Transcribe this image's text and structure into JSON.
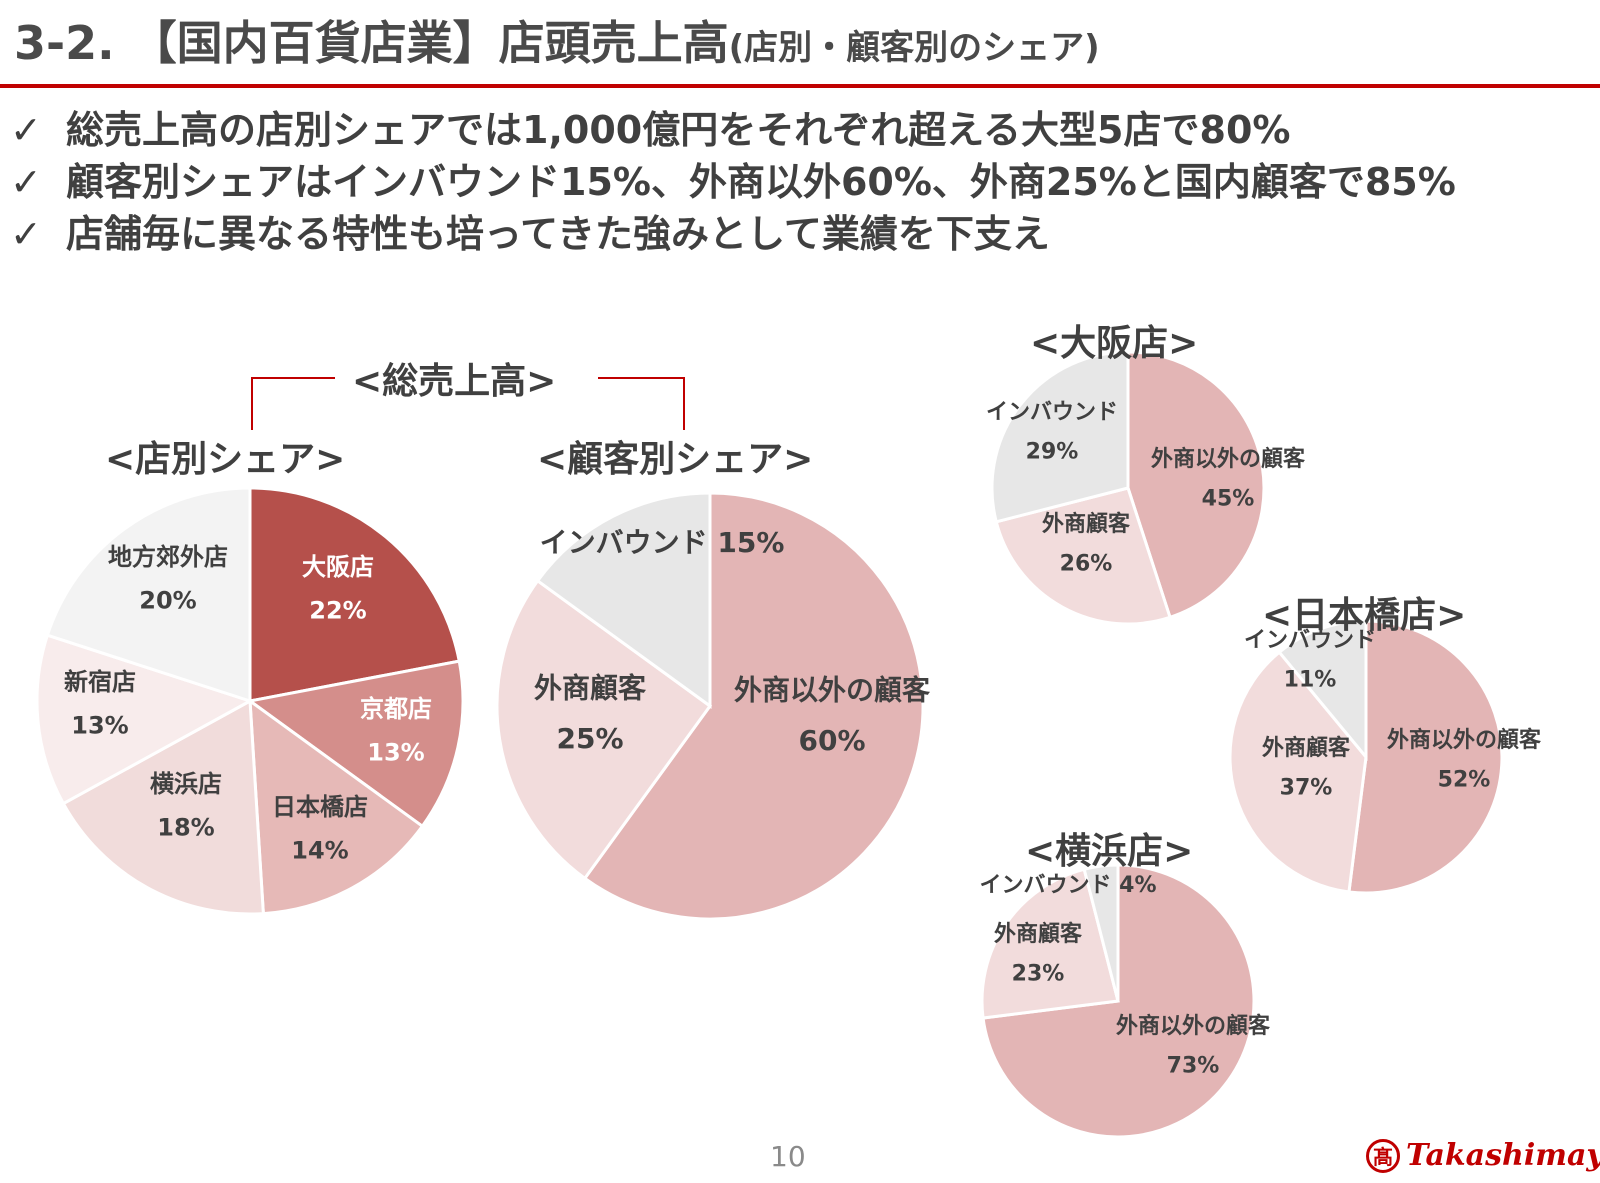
{
  "page": {
    "title_main": "3-2. 【国内百貨店業】店頭売上高",
    "title_sub": "(店別・顧客別のシェア)",
    "page_number": "10",
    "logo_text": "Takashimaya",
    "logo_mark": "髙",
    "brand_color": "#c00000"
  },
  "bullets": [
    {
      "check": "✓",
      "text": "総売上高の店別シェアでは1,000億円をそれぞれ超える大型5店で80%"
    },
    {
      "check": "✓",
      "text": "顧客別シェアはインバウンド15%、外商以外60%、外商25%と国内顧客で85%"
    },
    {
      "check": "✓",
      "text": "店舗毎に異なる特性も培ってきた強みとして業績を下支え"
    }
  ],
  "headings": {
    "total": "<総売上高>",
    "by_store": "<店別シェア>",
    "by_customer": "<顧客別シェア>",
    "osaka": "<大阪店>",
    "nihonbashi": "<日本橋店>",
    "yokohama": "<横浜店>"
  },
  "chart_data": [
    {
      "type": "pie",
      "title": "<店別シェア>",
      "slices": [
        {
          "label": "大阪店",
          "value": 22,
          "value_label": "22%",
          "color": "#b5504b",
          "text_color": "#ffffff"
        },
        {
          "label": "京都店",
          "value": 13,
          "value_label": "13%",
          "color": "#d48e8b",
          "text_color": "#ffffff"
        },
        {
          "label": "日本橋店",
          "value": 14,
          "value_label": "14%",
          "color": "#e6b9b7",
          "text_color": "#404040"
        },
        {
          "label": "横浜店",
          "value": 18,
          "value_label": "18%",
          "color": "#f1dcdb",
          "text_color": "#404040"
        },
        {
          "label": "新宿店",
          "value": 13,
          "value_label": "13%",
          "color": "#f8ecec",
          "text_color": "#404040"
        },
        {
          "label": "地方郊外店",
          "value": 20,
          "value_label": "20%",
          "color": "#f3f3f3",
          "text_color": "#404040"
        }
      ]
    },
    {
      "type": "pie",
      "title": "<顧客別シェア>",
      "slices": [
        {
          "label": "外商以外の顧客",
          "value": 60,
          "value_label": "60%",
          "color": "#e3b5b5",
          "text_color": "#404040"
        },
        {
          "label": "外商顧客",
          "value": 25,
          "value_label": "25%",
          "color": "#f2dcdc",
          "text_color": "#404040"
        },
        {
          "label": "インバウンド",
          "value": 15,
          "value_label": "15%",
          "color": "#e7e7e7",
          "text_color": "#404040"
        }
      ]
    },
    {
      "type": "pie",
      "title": "<大阪店>",
      "slices": [
        {
          "label": "外商以外の顧客",
          "value": 45,
          "value_label": "45%",
          "color": "#e3b5b5",
          "text_color": "#404040"
        },
        {
          "label": "外商顧客",
          "value": 26,
          "value_label": "26%",
          "color": "#f2dcdc",
          "text_color": "#404040"
        },
        {
          "label": "インバウンド",
          "value": 29,
          "value_label": "29%",
          "color": "#e7e7e7",
          "text_color": "#404040"
        }
      ]
    },
    {
      "type": "pie",
      "title": "<日本橋店>",
      "slices": [
        {
          "label": "外商以外の顧客",
          "value": 52,
          "value_label": "52%",
          "color": "#e3b5b5",
          "text_color": "#404040"
        },
        {
          "label": "外商顧客",
          "value": 37,
          "value_label": "37%",
          "color": "#f2dcdc",
          "text_color": "#404040"
        },
        {
          "label": "インバウンド",
          "value": 11,
          "value_label": "11%",
          "color": "#e7e7e7",
          "text_color": "#404040"
        }
      ]
    },
    {
      "type": "pie",
      "title": "<横浜店>",
      "slices": [
        {
          "label": "外商以外の顧客",
          "value": 73,
          "value_label": "73%",
          "color": "#e3b5b5",
          "text_color": "#404040"
        },
        {
          "label": "外商顧客",
          "value": 23,
          "value_label": "23%",
          "color": "#f2dcdc",
          "text_color": "#404040"
        },
        {
          "label": "インバウンド",
          "value": 4,
          "value_label": "4%",
          "color": "#e7e7e7",
          "text_color": "#404040"
        }
      ]
    }
  ]
}
